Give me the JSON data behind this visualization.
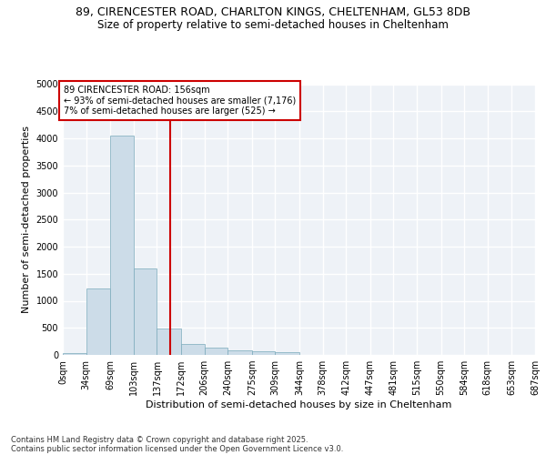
{
  "title_line1": "89, CIRENCESTER ROAD, CHARLTON KINGS, CHELTENHAM, GL53 8DB",
  "title_line2": "Size of property relative to semi-detached houses in Cheltenham",
  "xlabel": "Distribution of semi-detached houses by size in Cheltenham",
  "ylabel": "Number of semi-detached properties",
  "annotation_title": "89 CIRENCESTER ROAD: 156sqm",
  "annotation_line1": "← 93% of semi-detached houses are smaller (7,176)",
  "annotation_line2": "7% of semi-detached houses are larger (525) →",
  "footer_line1": "Contains HM Land Registry data © Crown copyright and database right 2025.",
  "footer_line2": "Contains public sector information licensed under the Open Government Licence v3.0.",
  "bin_edges": [
    0,
    34,
    69,
    103,
    137,
    172,
    206,
    240,
    275,
    309,
    344,
    378,
    412,
    447,
    481,
    515,
    550,
    584,
    618,
    653,
    687
  ],
  "bin_labels": [
    "0sqm",
    "34sqm",
    "69sqm",
    "103sqm",
    "137sqm",
    "172sqm",
    "206sqm",
    "240sqm",
    "275sqm",
    "309sqm",
    "344sqm",
    "378sqm",
    "412sqm",
    "447sqm",
    "481sqm",
    "515sqm",
    "550sqm",
    "584sqm",
    "618sqm",
    "653sqm",
    "687sqm"
  ],
  "bar_values": [
    30,
    1220,
    4050,
    1600,
    480,
    200,
    130,
    90,
    65,
    55,
    0,
    0,
    0,
    0,
    0,
    0,
    0,
    0,
    0,
    0
  ],
  "bar_color": "#ccdce8",
  "bar_edge_color": "#7aaabb",
  "vline_x": 156,
  "vline_color": "#cc0000",
  "annotation_box_color": "#cc0000",
  "ylim": [
    0,
    5000
  ],
  "yticks": [
    0,
    500,
    1000,
    1500,
    2000,
    2500,
    3000,
    3500,
    4000,
    4500,
    5000
  ],
  "background_color": "#eef2f7",
  "grid_color": "#ffffff",
  "title_fontsize": 9,
  "subtitle_fontsize": 8.5,
  "axis_label_fontsize": 8,
  "tick_fontsize": 7,
  "annotation_fontsize": 7,
  "footer_fontsize": 6
}
